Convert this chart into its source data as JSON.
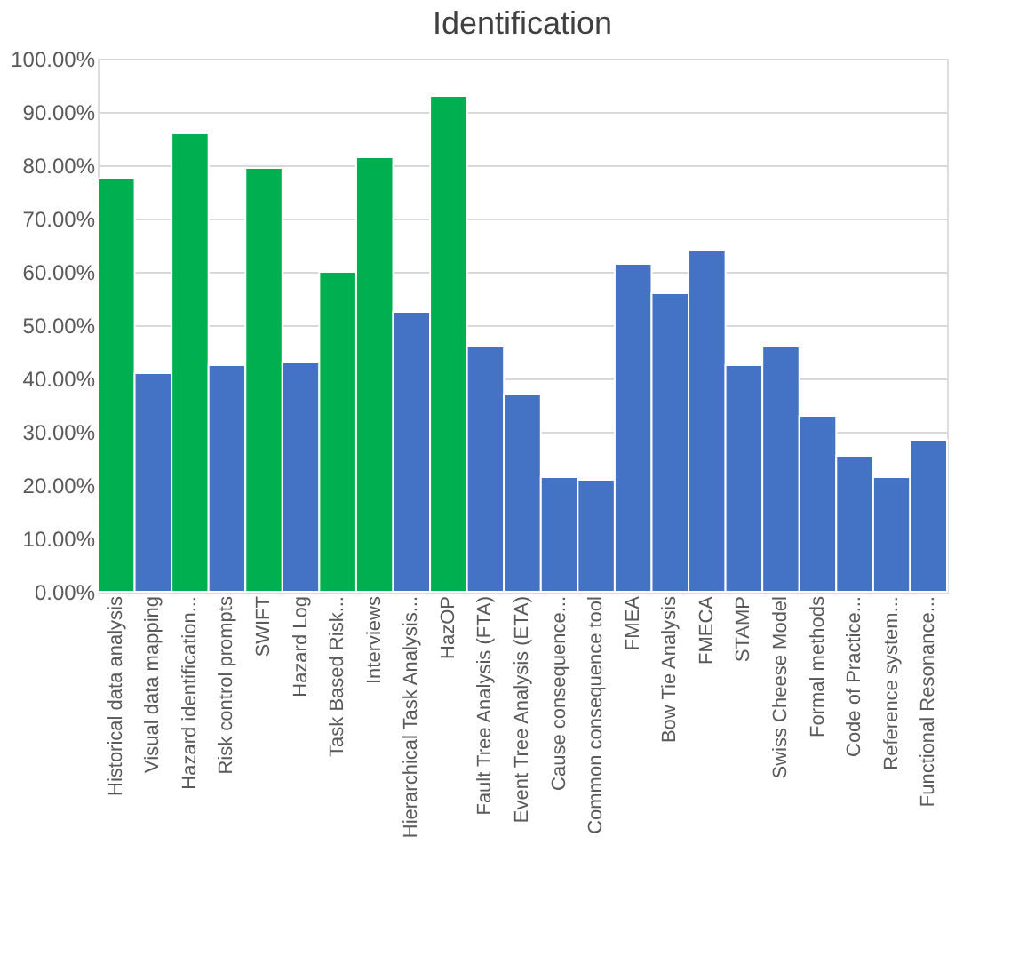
{
  "chart_data": {
    "type": "bar",
    "title": "Identification",
    "categories": [
      "Historical data analysis",
      "Visual data mapping",
      "Hazard identification...",
      "Risk control prompts",
      "SWIFT",
      "Hazard Log",
      "Task Based Risk...",
      "Interviews",
      "Hierarchical Task Analysis...",
      "HazOP",
      "Fault Tree Analysis (FTA)",
      "Event Tree Analysis (ETA)",
      "Cause consequence...",
      "Common consequence tool",
      "FMEA",
      "Bow Tie Analysis",
      "FMECA",
      "STAMP",
      "Swiss Cheese Model",
      "Formal methods",
      "Code of Practice...",
      "Reference system...",
      "Functional Resonance..."
    ],
    "values": [
      77.5,
      41,
      86,
      42.5,
      79.5,
      43,
      60,
      81.5,
      52.5,
      93,
      46,
      37,
      21.5,
      21,
      61.5,
      56,
      64,
      42.5,
      46,
      33,
      25.5,
      21.5,
      28.5
    ],
    "colors": [
      "#00b050",
      "#4472c4",
      "#00b050",
      "#4472c4",
      "#00b050",
      "#4472c4",
      "#00b050",
      "#00b050",
      "#4472c4",
      "#00b050",
      "#4472c4",
      "#4472c4",
      "#4472c4",
      "#4472c4",
      "#4472c4",
      "#4472c4",
      "#4472c4",
      "#4472c4",
      "#4472c4",
      "#4472c4",
      "#4472c4",
      "#4472c4",
      "#4472c4"
    ],
    "ylim": [
      0,
      100
    ],
    "yticks": [
      {
        "value": 0,
        "label": "0.00%"
      },
      {
        "value": 10,
        "label": "10.00%"
      },
      {
        "value": 20,
        "label": "20.00%"
      },
      {
        "value": 30,
        "label": "30.00%"
      },
      {
        "value": 40,
        "label": "40.00%"
      },
      {
        "value": 50,
        "label": "50.00%"
      },
      {
        "value": 60,
        "label": "60.00%"
      },
      {
        "value": 70,
        "label": "70.00%"
      },
      {
        "value": 80,
        "label": "80.00%"
      },
      {
        "value": 90,
        "label": "90.00%"
      },
      {
        "value": 100,
        "label": "100.00%"
      }
    ],
    "grid": "y"
  }
}
